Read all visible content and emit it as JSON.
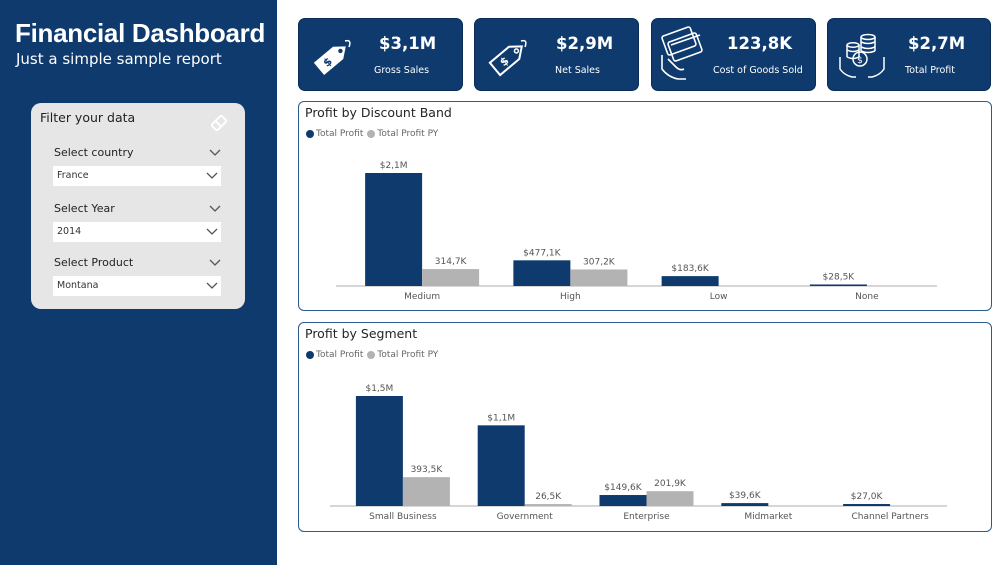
{
  "sidebar": {
    "title": "Financial Dashboard",
    "subtitle": "Just a simple sample report",
    "bg_color": "#0e3a6e"
  },
  "filters": {
    "title": "Filter your data",
    "clear_icon": "eraser-icon",
    "country": {
      "label": "Select country",
      "value": "France"
    },
    "year": {
      "label": "Select Year",
      "value": "2014"
    },
    "product": {
      "label": "Select Product",
      "value": "Montana"
    }
  },
  "kpis": [
    {
      "value": "$3,1M",
      "label": "Gross Sales",
      "icon": "price-tag-icon"
    },
    {
      "value": "$2,9M",
      "label": "Net Sales",
      "icon": "tag-outline-icon"
    },
    {
      "value": "123,8K",
      "label": "Cost of Goods Sold",
      "icon": "credit-card-hand-icon"
    },
    {
      "value": "$2,7M",
      "label": "Total Profit",
      "icon": "coins-hands-icon"
    }
  ],
  "colors": {
    "primary": "#0e3a6e",
    "secondary": "#b3b3b3"
  },
  "charts": {
    "discount": {
      "title": "Profit by Discount Band"
    },
    "segment": {
      "title": "Profit by Segment"
    }
  },
  "chart_data": [
    {
      "type": "bar",
      "title": "Profit by Discount Band",
      "categories": [
        "Medium",
        "High",
        "Low",
        "None"
      ],
      "series": [
        {
          "name": "Total Profit",
          "values": [
            2100000,
            477100,
            183600,
            28500
          ],
          "labels": [
            "$2,1M",
            "$477,1K",
            "$183,6K",
            "$28,5K"
          ]
        },
        {
          "name": "Total Profit PY",
          "values": [
            314700,
            307200,
            0,
            0
          ],
          "labels": [
            "314,7K",
            "307,2K",
            "",
            ""
          ]
        }
      ],
      "legend": "top-left"
    },
    {
      "type": "bar",
      "title": "Profit by Segment",
      "categories": [
        "Small Business",
        "Government",
        "Enterprise",
        "Midmarket",
        "Channel Partners"
      ],
      "series": [
        {
          "name": "Total Profit",
          "values": [
            1500000,
            1100000,
            149600,
            39600,
            27000
          ],
          "labels": [
            "$1,5M",
            "$1,1M",
            "$149,6K",
            "$39,6K",
            "$27,0K"
          ]
        },
        {
          "name": "Total Profit PY",
          "values": [
            393500,
            26500,
            201900,
            0,
            0
          ],
          "labels": [
            "393,5K",
            "26,5K",
            "201,9K",
            "",
            ""
          ]
        }
      ],
      "legend": "top-left"
    }
  ]
}
